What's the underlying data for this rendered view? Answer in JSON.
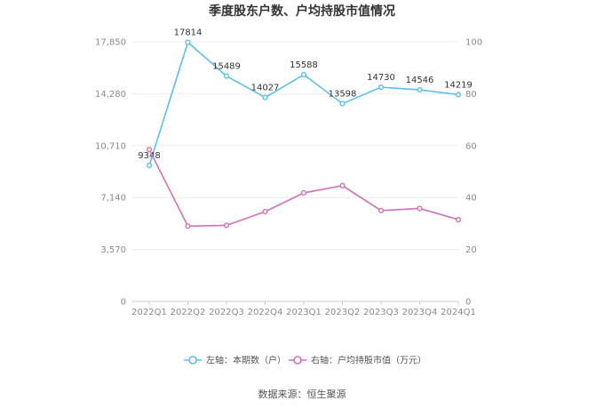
{
  "chart_data": {
    "type": "line",
    "title": "季度股东户数、户均持股市值情况",
    "categories": [
      "2022Q1",
      "2022Q2",
      "2022Q3",
      "2022Q4",
      "2023Q1",
      "2023Q2",
      "2023Q3",
      "2023Q4",
      "2024Q1"
    ],
    "left_axis": {
      "ticks": [
        "0",
        "3,570",
        "7,140",
        "10,710",
        "14,280",
        "17,850"
      ],
      "min": 0,
      "max": 17850
    },
    "right_axis": {
      "ticks": [
        "0",
        "20",
        "40",
        "60",
        "80",
        "100"
      ],
      "min": 0,
      "max": 100
    },
    "series": [
      {
        "name": "左轴：本期数（户）",
        "axis": "left",
        "color": "#5bc0eb",
        "values": [
          9348,
          17814,
          15489,
          14027,
          15588,
          13598,
          14730,
          14546,
          14219
        ],
        "labels": [
          "9348",
          "17814",
          "15489",
          "14027",
          "15588",
          "13598",
          "14730",
          "14546",
          "14219"
        ]
      },
      {
        "name": "右轴：户均持股市值（万元）",
        "axis": "right",
        "color": "#d070b8",
        "values": [
          58.5,
          29.0,
          29.3,
          34.6,
          41.8,
          44.6,
          35.0,
          35.8,
          31.5
        ]
      }
    ],
    "grid": true,
    "legend": "bottom-center"
  },
  "footer": {
    "source": "数据来源：恒生聚源"
  }
}
